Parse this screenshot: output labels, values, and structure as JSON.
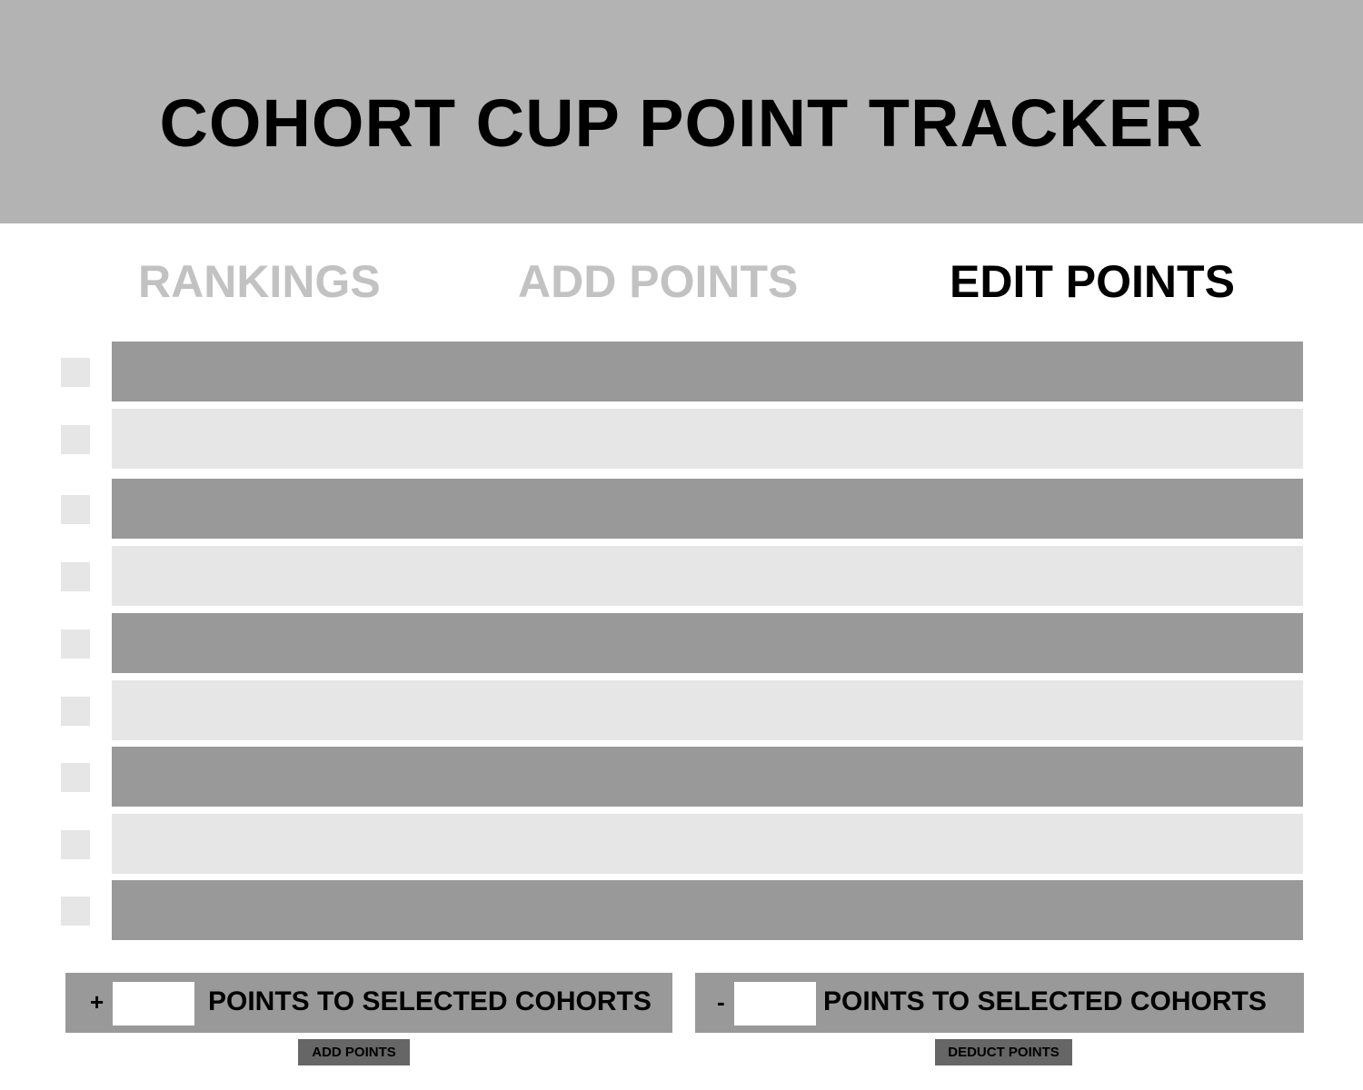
{
  "header": {
    "title": "COHORT CUP POINT TRACKER"
  },
  "tabs": [
    {
      "label": "RANKINGS",
      "active": false
    },
    {
      "label": "ADD POINTS",
      "active": false
    },
    {
      "label": "EDIT POINTS",
      "active": true
    }
  ],
  "cohort_rows": [
    {
      "shade": "dark"
    },
    {
      "shade": "light"
    },
    {
      "shade": "dark"
    },
    {
      "shade": "light"
    },
    {
      "shade": "dark"
    },
    {
      "shade": "light"
    },
    {
      "shade": "dark"
    },
    {
      "shade": "light"
    },
    {
      "shade": "dark"
    }
  ],
  "add_panel": {
    "sign": "+",
    "input_value": "",
    "label": "POINTS TO SELECTED COHORTS",
    "button_label": "ADD POINTS"
  },
  "deduct_panel": {
    "sign": "-",
    "input_value": "",
    "label": "POINTS TO SELECTED COHORTS",
    "button_label": "DEDUCT POINTS"
  },
  "colors": {
    "header_bg": "#b3b3b3",
    "row_dark": "#999999",
    "row_light": "#e6e6e6",
    "tab_inactive": "#c2c2c2",
    "tab_active": "#000000",
    "button_bg": "#666666"
  }
}
